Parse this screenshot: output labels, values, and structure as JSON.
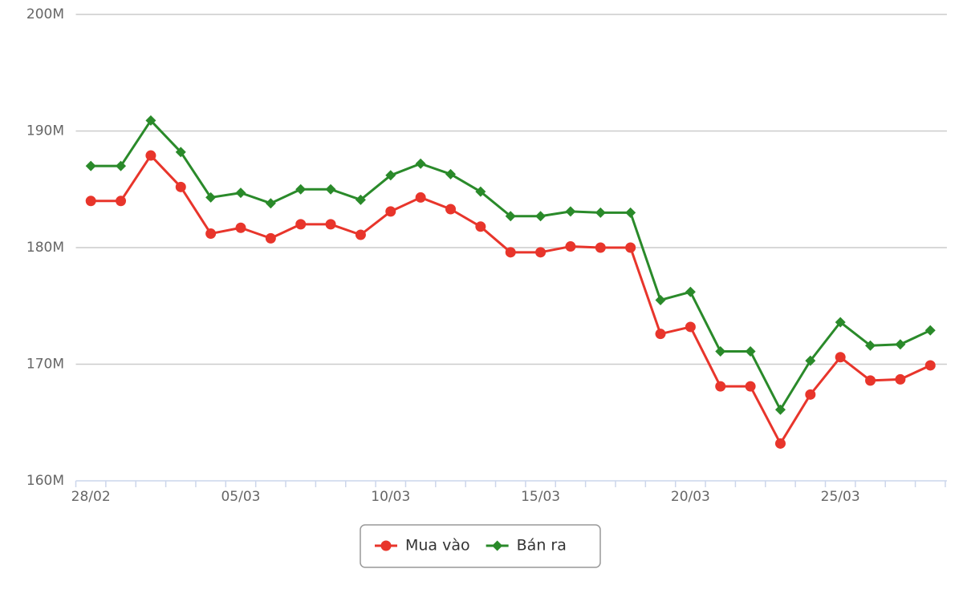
{
  "chart_data": {
    "type": "line",
    "categories": [
      "28/02",
      null,
      null,
      null,
      null,
      "05/03",
      null,
      null,
      null,
      null,
      "10/03",
      null,
      null,
      null,
      null,
      "15/03",
      null,
      null,
      null,
      null,
      "20/03",
      null,
      null,
      null,
      null,
      "25/03",
      null,
      null,
      null
    ],
    "series": [
      {
        "name": "Mua vào",
        "color": "#e8352b",
        "marker": "circle",
        "values": [
          184.0,
          184.0,
          187.9,
          185.2,
          181.2,
          181.7,
          180.8,
          182.0,
          182.0,
          181.1,
          183.1,
          184.3,
          183.3,
          181.8,
          179.6,
          179.6,
          180.1,
          180.0,
          180.0,
          172.6,
          173.2,
          168.1,
          168.1,
          163.2,
          167.4,
          170.6,
          168.6,
          168.7,
          169.9
        ]
      },
      {
        "name": "Bán ra",
        "color": "#2a8a2a",
        "marker": "diamond",
        "values": [
          187.0,
          187.0,
          190.9,
          188.2,
          184.3,
          184.7,
          183.8,
          185.0,
          185.0,
          184.1,
          186.2,
          187.2,
          186.3,
          184.8,
          182.7,
          182.7,
          183.1,
          183.0,
          183.0,
          175.5,
          176.2,
          171.1,
          171.1,
          166.1,
          170.3,
          173.6,
          171.6,
          171.7,
          172.9
        ]
      }
    ],
    "ylim": [
      160,
      200
    ],
    "yticks": [
      {
        "value": 160,
        "label": "160M"
      },
      {
        "value": 170,
        "label": "170M"
      },
      {
        "value": 180,
        "label": "180M"
      },
      {
        "value": 190,
        "label": "190M"
      },
      {
        "value": 200,
        "label": "200M"
      }
    ],
    "grid": true,
    "legend": "bottom"
  }
}
